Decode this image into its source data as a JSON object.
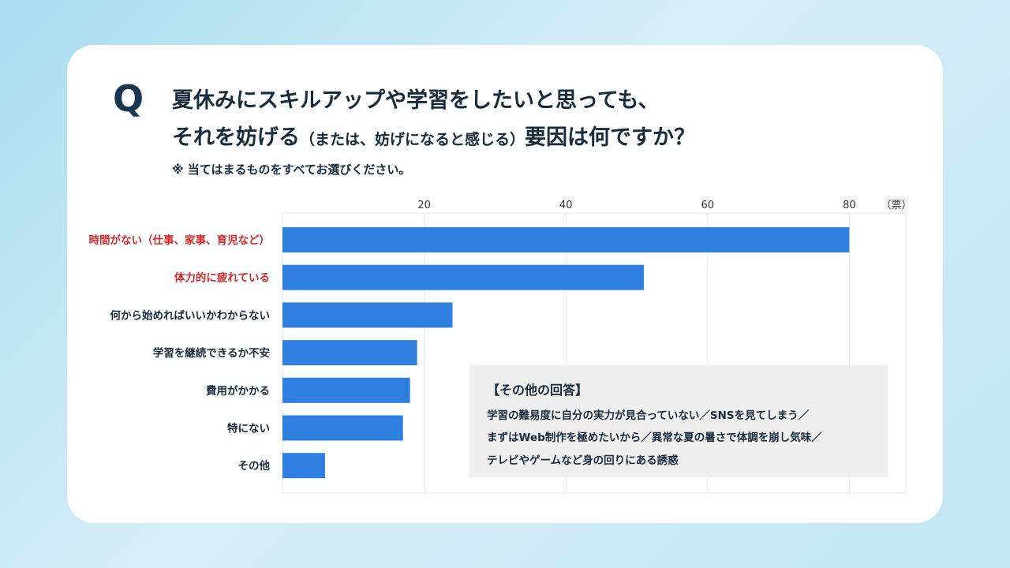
{
  "question": {
    "mark": "Q",
    "line1": "夏休みにスキルアップや学習をしたいと思っても、",
    "line2_main": "それを妨げる",
    "line2_paren": "（または、妨げになると感じる）",
    "line2_end": "要因は何ですか？",
    "note": "※ 当てはまるものをすべてお選びください。"
  },
  "chart_data": {
    "type": "bar",
    "orientation": "horizontal",
    "categories": [
      "時間がない（仕事、家事、育児など）",
      "体力的に疲れている",
      "何から始めればいいかわからない",
      "学習を継続できるか不安",
      "費用がかかる",
      "特にない",
      "その他"
    ],
    "values": [
      80,
      51,
      24,
      19,
      18,
      17,
      6
    ],
    "highlight_categories": [
      0,
      1
    ],
    "unit": "（票）",
    "xlim": [
      0,
      88
    ],
    "xticks": [
      20,
      40,
      60,
      80
    ],
    "grid": true,
    "colors": {
      "bar": "#2f7fe0",
      "highlight_label": "#d42a2a",
      "label": "#1a2a3c",
      "grid": "#e4e7ea"
    }
  },
  "other_answers": {
    "title": "【その他の回答】",
    "lines": [
      "学習の難易度に自分の実力が見合っていない／SNSを見てしまう／",
      "まずはWeb制作を極めたいから／異常な夏の暑さで体調を崩し気味／",
      "テレビやゲームなど身の回りにある誘惑"
    ]
  }
}
